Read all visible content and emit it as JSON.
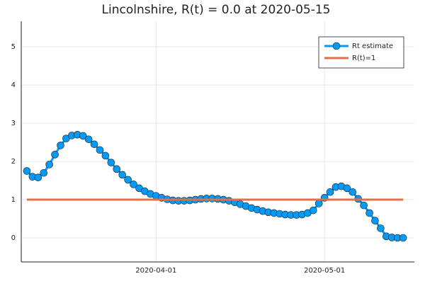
{
  "chart_data": {
    "type": "line",
    "title": "Lincolnshire, R(t) = 0.0 at 2020-05-15",
    "series": [
      {
        "name": "Rt estimate",
        "color": "#009af9",
        "markers": true,
        "x": [
          "2020-03-09",
          "2020-03-10",
          "2020-03-11",
          "2020-03-12",
          "2020-03-13",
          "2020-03-14",
          "2020-03-15",
          "2020-03-16",
          "2020-03-17",
          "2020-03-18",
          "2020-03-19",
          "2020-03-20",
          "2020-03-21",
          "2020-03-22",
          "2020-03-23",
          "2020-03-24",
          "2020-03-25",
          "2020-03-26",
          "2020-03-27",
          "2020-03-28",
          "2020-03-29",
          "2020-03-30",
          "2020-03-31",
          "2020-04-01",
          "2020-04-02",
          "2020-04-03",
          "2020-04-04",
          "2020-04-05",
          "2020-04-06",
          "2020-04-07",
          "2020-04-08",
          "2020-04-09",
          "2020-04-10",
          "2020-04-11",
          "2020-04-12",
          "2020-04-13",
          "2020-04-14",
          "2020-04-15",
          "2020-04-16",
          "2020-04-17",
          "2020-04-18",
          "2020-04-19",
          "2020-04-20",
          "2020-04-21",
          "2020-04-22",
          "2020-04-23",
          "2020-04-24",
          "2020-04-25",
          "2020-04-26",
          "2020-04-27",
          "2020-04-28",
          "2020-04-29",
          "2020-04-30",
          "2020-05-01",
          "2020-05-02",
          "2020-05-03",
          "2020-05-04",
          "2020-05-05",
          "2020-05-06",
          "2020-05-07",
          "2020-05-08",
          "2020-05-09",
          "2020-05-10",
          "2020-05-11",
          "2020-05-12",
          "2020-05-13",
          "2020-05-14",
          "2020-05-15"
        ],
        "values": [
          1.75,
          1.6,
          1.58,
          1.7,
          1.92,
          2.18,
          2.42,
          2.6,
          2.68,
          2.7,
          2.67,
          2.58,
          2.45,
          2.3,
          2.15,
          1.97,
          1.8,
          1.65,
          1.52,
          1.4,
          1.3,
          1.22,
          1.15,
          1.1,
          1.05,
          1.01,
          0.98,
          0.97,
          0.97,
          0.98,
          1.0,
          1.02,
          1.03,
          1.03,
          1.02,
          1.0,
          0.97,
          0.93,
          0.88,
          0.83,
          0.78,
          0.74,
          0.7,
          0.67,
          0.65,
          0.63,
          0.61,
          0.6,
          0.6,
          0.61,
          0.65,
          0.72,
          0.9,
          1.05,
          1.2,
          1.33,
          1.35,
          1.3,
          1.2,
          1.02,
          0.85,
          0.65,
          0.45,
          0.25,
          0.04,
          0.01,
          0.0,
          0.0
        ]
      },
      {
        "name": "R(t)=1",
        "color": "#e26f46",
        "markers": false,
        "x": [
          "2020-03-09",
          "2020-05-15"
        ],
        "values": [
          1,
          1
        ]
      }
    ],
    "xlim": [
      "2020-03-08",
      "2020-05-17"
    ],
    "xticks": [
      "2020-04-01",
      "2020-05-01"
    ],
    "ylim": [
      -0.63,
      5.67
    ],
    "yticks": [
      0,
      1,
      2,
      3,
      4,
      5
    ],
    "grid": true,
    "legend": "top-right"
  }
}
